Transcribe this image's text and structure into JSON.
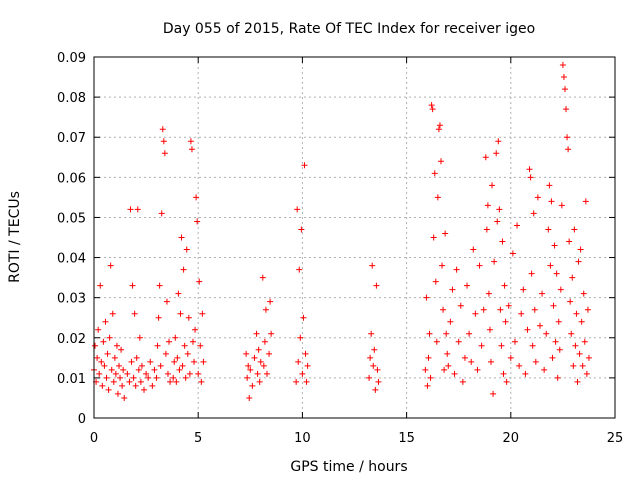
{
  "chart_data": {
    "type": "scatter",
    "title": "Day 055 of 2015, Rate Of TEC Index for receiver igeo",
    "xlabel": "GPS time / hours",
    "ylabel": "ROTI / TECUs",
    "xlim": [
      0,
      25
    ],
    "ylim": [
      0,
      0.09
    ],
    "x_ticks": [
      0,
      5,
      10,
      15,
      20,
      25
    ],
    "y_ticks": [
      0,
      0.01,
      0.02,
      0.03,
      0.04,
      0.05,
      0.06,
      0.07,
      0.08,
      0.09
    ],
    "x_tick_labels": [
      "0",
      "5",
      "10",
      "15",
      "20",
      "25"
    ],
    "y_tick_labels": [
      "0",
      "0.01",
      "0.02",
      "0.03",
      "0.04",
      "0.05",
      "0.06",
      "0.07",
      "0.08",
      "0.09"
    ],
    "grid": true,
    "marker": "+",
    "color": "#ff0000",
    "series": [
      {
        "points": [
          [
            0.0,
            0.012
          ],
          [
            0.05,
            0.018
          ],
          [
            0.1,
            0.009
          ],
          [
            0.15,
            0.015
          ],
          [
            0.2,
            0.022
          ],
          [
            0.25,
            0.011
          ],
          [
            0.3,
            0.033
          ],
          [
            0.35,
            0.014
          ],
          [
            0.4,
            0.008
          ],
          [
            0.45,
            0.019
          ],
          [
            0.5,
            0.013
          ],
          [
            0.55,
            0.024
          ],
          [
            0.6,
            0.01
          ],
          [
            0.65,
            0.016
          ],
          [
            0.7,
            0.007
          ],
          [
            0.75,
            0.02
          ],
          [
            0.8,
            0.038
          ],
          [
            0.85,
            0.012
          ],
          [
            0.9,
            0.026
          ],
          [
            0.95,
            0.009
          ],
          [
            1.0,
            0.015
          ],
          [
            1.05,
            0.011
          ],
          [
            1.1,
            0.018
          ],
          [
            1.15,
            0.006
          ],
          [
            1.2,
            0.013
          ],
          [
            1.25,
            0.01
          ],
          [
            1.3,
            0.017
          ],
          [
            1.35,
            0.008
          ],
          [
            1.4,
            0.012
          ],
          [
            1.45,
            0.005
          ],
          [
            1.6,
            0.011
          ],
          [
            1.7,
            0.009
          ],
          [
            1.75,
            0.052
          ],
          [
            1.8,
            0.014
          ],
          [
            1.85,
            0.033
          ],
          [
            1.9,
            0.01
          ],
          [
            1.95,
            0.026
          ],
          [
            2.0,
            0.008
          ],
          [
            2.05,
            0.015
          ],
          [
            2.1,
            0.052
          ],
          [
            2.15,
            0.012
          ],
          [
            2.2,
            0.02
          ],
          [
            2.25,
            0.009
          ],
          [
            2.3,
            0.013
          ],
          [
            2.4,
            0.007
          ],
          [
            2.5,
            0.011
          ],
          [
            2.6,
            0.01
          ],
          [
            2.7,
            0.014
          ],
          [
            2.8,
            0.008
          ],
          [
            2.9,
            0.012
          ],
          [
            3.0,
            0.01
          ],
          [
            3.05,
            0.018
          ],
          [
            3.1,
            0.025
          ],
          [
            3.15,
            0.033
          ],
          [
            3.2,
            0.013
          ],
          [
            3.25,
            0.051
          ],
          [
            3.3,
            0.072
          ],
          [
            3.35,
            0.069
          ],
          [
            3.4,
            0.066
          ],
          [
            3.45,
            0.016
          ],
          [
            3.5,
            0.029
          ],
          [
            3.55,
            0.011
          ],
          [
            3.6,
            0.019
          ],
          [
            3.65,
            0.009
          ],
          [
            3.8,
            0.01
          ],
          [
            3.85,
            0.014
          ],
          [
            3.9,
            0.02
          ],
          [
            3.95,
            0.009
          ],
          [
            4.0,
            0.015
          ],
          [
            4.05,
            0.031
          ],
          [
            4.1,
            0.012
          ],
          [
            4.15,
            0.026
          ],
          [
            4.2,
            0.045
          ],
          [
            4.25,
            0.013
          ],
          [
            4.3,
            0.037
          ],
          [
            4.35,
            0.018
          ],
          [
            4.4,
            0.01
          ],
          [
            4.45,
            0.042
          ],
          [
            4.5,
            0.016
          ],
          [
            4.55,
            0.025
          ],
          [
            4.6,
            0.011
          ],
          [
            4.65,
            0.069
          ],
          [
            4.7,
            0.067
          ],
          [
            4.75,
            0.019
          ],
          [
            4.8,
            0.014
          ],
          [
            4.85,
            0.022
          ],
          [
            4.9,
            0.055
          ],
          [
            4.95,
            0.049
          ],
          [
            5.0,
            0.011
          ],
          [
            5.05,
            0.034
          ],
          [
            5.1,
            0.018
          ],
          [
            5.15,
            0.009
          ],
          [
            5.2,
            0.026
          ],
          [
            5.25,
            0.014
          ],
          [
            7.3,
            0.016
          ],
          [
            7.35,
            0.01
          ],
          [
            7.4,
            0.013
          ],
          [
            7.45,
            0.005
          ],
          [
            7.5,
            0.012
          ],
          [
            7.6,
            0.008
          ],
          [
            7.7,
            0.015
          ],
          [
            7.8,
            0.021
          ],
          [
            7.85,
            0.011
          ],
          [
            7.9,
            0.017
          ],
          [
            7.95,
            0.009
          ],
          [
            8.0,
            0.014
          ],
          [
            8.1,
            0.035
          ],
          [
            8.15,
            0.013
          ],
          [
            8.2,
            0.019
          ],
          [
            8.25,
            0.027
          ],
          [
            8.3,
            0.011
          ],
          [
            8.4,
            0.016
          ],
          [
            8.45,
            0.029
          ],
          [
            8.5,
            0.021
          ],
          [
            9.7,
            0.009
          ],
          [
            9.75,
            0.052
          ],
          [
            9.8,
            0.014
          ],
          [
            9.85,
            0.037
          ],
          [
            9.9,
            0.02
          ],
          [
            9.95,
            0.047
          ],
          [
            10.0,
            0.011
          ],
          [
            10.05,
            0.025
          ],
          [
            10.1,
            0.063
          ],
          [
            10.15,
            0.016
          ],
          [
            10.2,
            0.009
          ],
          [
            10.25,
            0.013
          ],
          [
            13.2,
            0.01
          ],
          [
            13.25,
            0.015
          ],
          [
            13.3,
            0.021
          ],
          [
            13.35,
            0.038
          ],
          [
            13.4,
            0.013
          ],
          [
            13.45,
            0.017
          ],
          [
            13.5,
            0.007
          ],
          [
            13.55,
            0.033
          ],
          [
            13.6,
            0.012
          ],
          [
            13.65,
            0.009
          ],
          [
            15.9,
            0.012
          ],
          [
            15.95,
            0.03
          ],
          [
            16.0,
            0.008
          ],
          [
            16.05,
            0.015
          ],
          [
            16.1,
            0.021
          ],
          [
            16.15,
            0.01
          ],
          [
            16.2,
            0.078
          ],
          [
            16.25,
            0.077
          ],
          [
            16.3,
            0.045
          ],
          [
            16.35,
            0.061
          ],
          [
            16.4,
            0.034
          ],
          [
            16.45,
            0.019
          ],
          [
            16.5,
            0.055
          ],
          [
            16.55,
            0.072
          ],
          [
            16.6,
            0.073
          ],
          [
            16.65,
            0.064
          ],
          [
            16.7,
            0.038
          ],
          [
            16.75,
            0.027
          ],
          [
            16.8,
            0.012
          ],
          [
            16.85,
            0.046
          ],
          [
            16.9,
            0.021
          ],
          [
            16.95,
            0.016
          ],
          [
            17.0,
            0.013
          ],
          [
            17.1,
            0.024
          ],
          [
            17.2,
            0.032
          ],
          [
            17.3,
            0.011
          ],
          [
            17.4,
            0.037
          ],
          [
            17.5,
            0.019
          ],
          [
            17.6,
            0.028
          ],
          [
            17.7,
            0.009
          ],
          [
            17.8,
            0.015
          ],
          [
            17.9,
            0.033
          ],
          [
            18.0,
            0.021
          ],
          [
            18.1,
            0.014
          ],
          [
            18.2,
            0.042
          ],
          [
            18.3,
            0.026
          ],
          [
            18.4,
            0.012
          ],
          [
            18.5,
            0.038
          ],
          [
            18.6,
            0.018
          ],
          [
            18.7,
            0.027
          ],
          [
            18.8,
            0.065
          ],
          [
            18.85,
            0.047
          ],
          [
            18.9,
            0.053
          ],
          [
            18.95,
            0.031
          ],
          [
            19.0,
            0.022
          ],
          [
            19.05,
            0.014
          ],
          [
            19.1,
            0.058
          ],
          [
            19.15,
            0.006
          ],
          [
            19.2,
            0.039
          ],
          [
            19.3,
            0.066
          ],
          [
            19.35,
            0.049
          ],
          [
            19.4,
            0.069
          ],
          [
            19.45,
            0.052
          ],
          [
            19.5,
            0.027
          ],
          [
            19.55,
            0.018
          ],
          [
            19.6,
            0.044
          ],
          [
            19.65,
            0.011
          ],
          [
            19.7,
            0.033
          ],
          [
            19.75,
            0.024
          ],
          [
            19.8,
            0.009
          ],
          [
            19.9,
            0.028
          ],
          [
            20.0,
            0.015
          ],
          [
            20.1,
            0.041
          ],
          [
            20.2,
            0.019
          ],
          [
            20.3,
            0.048
          ],
          [
            20.4,
            0.013
          ],
          [
            20.5,
            0.026
          ],
          [
            20.6,
            0.032
          ],
          [
            20.7,
            0.011
          ],
          [
            20.8,
            0.022
          ],
          [
            20.9,
            0.062
          ],
          [
            20.95,
            0.06
          ],
          [
            21.0,
            0.036
          ],
          [
            21.05,
            0.018
          ],
          [
            21.1,
            0.051
          ],
          [
            21.15,
            0.027
          ],
          [
            21.2,
            0.014
          ],
          [
            21.3,
            0.055
          ],
          [
            21.4,
            0.023
          ],
          [
            21.5,
            0.031
          ],
          [
            21.6,
            0.012
          ],
          [
            21.7,
            0.021
          ],
          [
            21.8,
            0.047
          ],
          [
            21.85,
            0.058
          ],
          [
            21.9,
            0.038
          ],
          [
            21.95,
            0.054
          ],
          [
            22.0,
            0.015
          ],
          [
            22.05,
            0.028
          ],
          [
            22.1,
            0.043
          ],
          [
            22.15,
            0.019
          ],
          [
            22.2,
            0.036
          ],
          [
            22.25,
            0.01
          ],
          [
            22.3,
            0.024
          ],
          [
            22.35,
            0.017
          ],
          [
            22.4,
            0.032
          ],
          [
            22.45,
            0.053
          ],
          [
            22.5,
            0.088
          ],
          [
            22.55,
            0.085
          ],
          [
            22.6,
            0.082
          ],
          [
            22.65,
            0.077
          ],
          [
            22.7,
            0.07
          ],
          [
            22.75,
            0.067
          ],
          [
            22.8,
            0.044
          ],
          [
            22.85,
            0.029
          ],
          [
            22.9,
            0.021
          ],
          [
            22.95,
            0.035
          ],
          [
            23.0,
            0.013
          ],
          [
            23.05,
            0.047
          ],
          [
            23.1,
            0.018
          ],
          [
            23.15,
            0.026
          ],
          [
            23.2,
            0.009
          ],
          [
            23.25,
            0.039
          ],
          [
            23.3,
            0.016
          ],
          [
            23.35,
            0.042
          ],
          [
            23.4,
            0.024
          ],
          [
            23.45,
            0.013
          ],
          [
            23.5,
            0.031
          ],
          [
            23.55,
            0.019
          ],
          [
            23.6,
            0.054
          ],
          [
            23.65,
            0.011
          ],
          [
            23.7,
            0.027
          ],
          [
            23.75,
            0.015
          ]
        ]
      }
    ]
  }
}
